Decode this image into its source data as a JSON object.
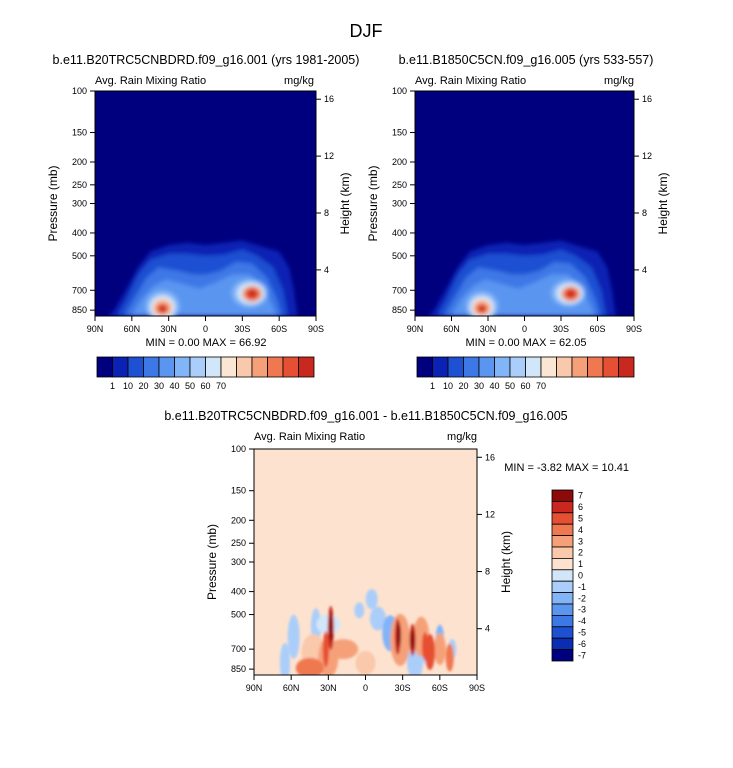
{
  "figure_title": "DJF",
  "colors": {
    "background": "#00007f",
    "diff_background": "#fde3cf",
    "abs_palette": [
      "#0a23b4",
      "#1e50d2",
      "#3c78e6",
      "#5a96f0",
      "#82b4f8",
      "#aacdfa",
      "#d2e6fa",
      "#fae6d2",
      "#fac8aa",
      "#f5a078",
      "#ef7850",
      "#e65032",
      "#c8281e",
      "#8c0a0a"
    ],
    "diff_palette": [
      "#00007f",
      "#0a2db4",
      "#1e50d2",
      "#3c78e6",
      "#5a96f0",
      "#82b4f8",
      "#aacdfa",
      "#d2e6fa",
      "#fde3cf",
      "#fac8aa",
      "#f5a078",
      "#ef7850",
      "#e65032",
      "#c8281e",
      "#8c0a0a"
    ]
  },
  "panels": [
    {
      "id": "p1",
      "title": "b.e11.B20TRC5CNBDRD.f09_g16.001 (yrs 1981-2005)",
      "left_label": "Avg. Rain Mixing Ratio",
      "right_label": "mg/kg",
      "stats": "MIN =   0.00  MAX = 66.92"
    },
    {
      "id": "p2",
      "title": "b.e11.B1850C5CN.f09_g16.005 (yrs 533-557)",
      "left_label": "Avg. Rain Mixing Ratio",
      "right_label": "mg/kg",
      "stats": "MIN =   0.00  MAX = 62.05"
    },
    {
      "id": "p3",
      "title": "b.e11.B20TRC5CNBDRD.f09_g16.001 - b.e11.B1850C5CN.f09_g16.005",
      "left_label": "Avg. Rain Mixing Ratio",
      "right_label": "mg/kg",
      "stats": "MIN =  -3.82  MAX =  10.41"
    }
  ],
  "labelbar_abs": {
    "labels": [
      "1",
      "10",
      "20",
      "30",
      "40",
      "50",
      "60",
      "70"
    ]
  },
  "labelbar_diff": {
    "labels": [
      "7",
      "6",
      "5",
      "4",
      "3",
      "2",
      "1",
      "0",
      "-1",
      "-2",
      "-3",
      "-4",
      "-5",
      "-6",
      "-7"
    ]
  },
  "chart_data": [
    {
      "type": "heatmap",
      "title": "b.e11.B20TRC5CNBDRD.f09_g16.001 (yrs 1981-2005)",
      "xlabel": "",
      "ylabel": "Pressure (mb)",
      "y2label": "Height (km)",
      "x_ticks": [
        "90N",
        "60N",
        "30N",
        "0",
        "30S",
        "60S",
        "90S"
      ],
      "y_ticks": [
        "100",
        "150",
        "200",
        "250",
        "300",
        "400",
        "500",
        "700",
        "850"
      ],
      "y2_ticks": [
        "16",
        "12",
        "8",
        "4"
      ],
      "xlim": [
        90,
        -90
      ],
      "ylim": [
        100,
        900
      ],
      "y_scale": "log",
      "grid": false,
      "features": [
        {
          "lat": 35,
          "p": 830,
          "value": 66.92
        },
        {
          "lat": -38,
          "p": 720,
          "value": 60
        }
      ],
      "min": 0.0,
      "max": 66.92
    },
    {
      "type": "heatmap",
      "title": "b.e11.B1850C5CN.f09_g16.005 (yrs 533-557)",
      "xlabel": "",
      "ylabel": "Pressure (mb)",
      "y2label": "Height (km)",
      "x_ticks": [
        "90N",
        "60N",
        "30N",
        "0",
        "30S",
        "60S",
        "90S"
      ],
      "y_ticks": [
        "100",
        "150",
        "200",
        "250",
        "300",
        "400",
        "500",
        "700",
        "850"
      ],
      "y2_ticks": [
        "16",
        "12",
        "8",
        "4"
      ],
      "xlim": [
        90,
        -90
      ],
      "ylim": [
        100,
        900
      ],
      "y_scale": "log",
      "grid": false,
      "features": [
        {
          "lat": 35,
          "p": 830,
          "value": 62.05
        },
        {
          "lat": -38,
          "p": 720,
          "value": 58
        }
      ],
      "min": 0.0,
      "max": 62.05
    },
    {
      "type": "heatmap",
      "title": "b.e11.B20TRC5CNBDRD.f09_g16.001 - b.e11.B1850C5CN.f09_g16.005",
      "xlabel": "",
      "ylabel": "Pressure (mb)",
      "y2label": "Height (km)",
      "x_ticks": [
        "90N",
        "60N",
        "30N",
        "0",
        "30S",
        "60S",
        "90S"
      ],
      "y_ticks": [
        "100",
        "150",
        "200",
        "250",
        "300",
        "400",
        "500",
        "700",
        "850"
      ],
      "y2_ticks": [
        "16",
        "12",
        "8",
        "4"
      ],
      "xlim": [
        90,
        -90
      ],
      "ylim": [
        100,
        900
      ],
      "y_scale": "log",
      "grid": false,
      "min": -3.82,
      "max": 10.41
    }
  ]
}
